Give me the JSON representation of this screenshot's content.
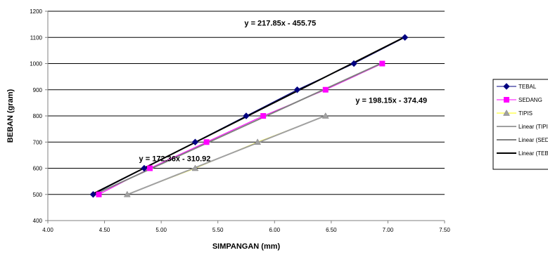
{
  "chart_data": {
    "type": "scatter",
    "xlabel": "SIMPANGAN (mm)",
    "ylabel": "BEBAN (gram)",
    "xlim": [
      4.0,
      7.5
    ],
    "ylim": [
      400,
      1200
    ],
    "x_ticks": [
      4.0,
      4.5,
      5.0,
      5.5,
      6.0,
      6.5,
      7.0,
      7.5
    ],
    "y_ticks": [
      400,
      500,
      600,
      700,
      800,
      900,
      1000,
      1100,
      1200
    ],
    "grid": "horizontal",
    "legend_position": "right",
    "series": [
      {
        "name": "TEBAL",
        "marker": "diamond",
        "color": "#000080",
        "x": [
          4.4,
          4.85,
          5.3,
          5.75,
          6.2,
          6.7,
          7.15
        ],
        "y": [
          500,
          600,
          700,
          800,
          900,
          1000,
          1100
        ]
      },
      {
        "name": "SEDANG",
        "marker": "square",
        "color": "#ff00ff",
        "x": [
          4.45,
          4.9,
          5.4,
          5.9,
          6.45,
          6.95
        ],
        "y": [
          500,
          600,
          700,
          800,
          900,
          1000
        ]
      },
      {
        "name": "TIPIS",
        "marker": "triangle",
        "color": "#ffff00",
        "x": [
          4.7,
          5.3,
          5.85,
          6.45
        ],
        "y": [
          500,
          600,
          700,
          800
        ]
      }
    ],
    "trendlines": [
      {
        "name": "Linear (TIPIS)",
        "color": "#a0a0a0",
        "slope": 172.36,
        "intercept": -310.92,
        "x_range": [
          4.7,
          6.45
        ]
      },
      {
        "name": "Linear (SEDANG)",
        "color": "#808080",
        "slope": 198.15,
        "intercept": -374.49,
        "x_range": [
          4.4,
          6.95
        ]
      },
      {
        "name": "Linear (TEBAL)",
        "color": "#000000",
        "slope": 217.85,
        "intercept": -455.75,
        "x_range": [
          4.4,
          7.15
        ]
      }
    ],
    "annotations": [
      {
        "text": "y = 217.85x - 455.75",
        "x": 6.05,
        "y": 1145
      },
      {
        "text": "y = 198.15x - 374.49",
        "x": 7.03,
        "y": 850
      },
      {
        "text": "y = 172.36x - 310.92",
        "x": 5.12,
        "y": 627
      }
    ],
    "legend": [
      "TEBAL",
      "SEDANG",
      "TIPIS",
      "Linear (TIPIS)",
      "Linear (SEDANG)",
      "Linear (TEBAL)"
    ]
  }
}
